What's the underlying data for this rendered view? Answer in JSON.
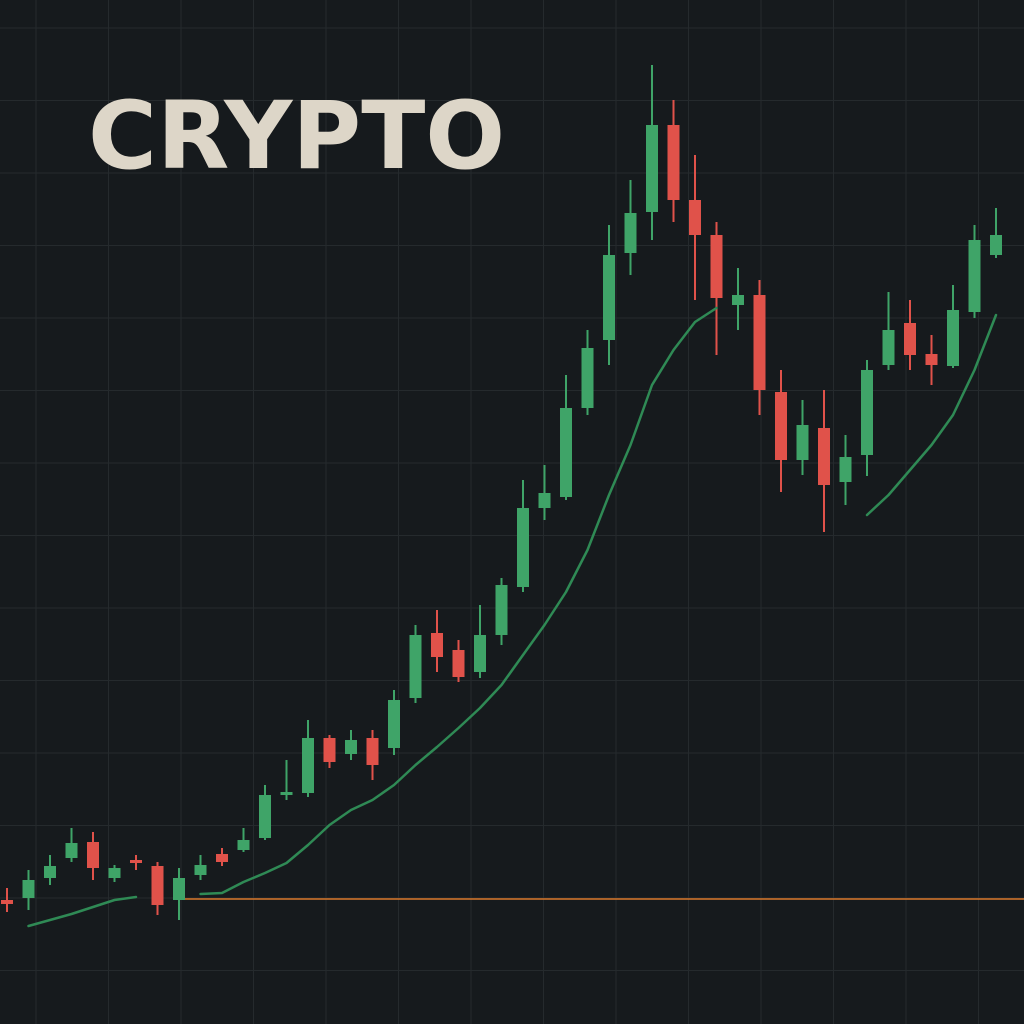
{
  "chart_data": {
    "type": "candlestick",
    "title": "CRYPTO",
    "ylim": [
      -2.4,
      100
    ],
    "grid": true,
    "up_color": "#3fa468",
    "down_color": "#e0524a",
    "open": [
      10.0,
      10.2,
      12.2,
      14.2,
      15.8,
      12.2,
      14.0,
      13.4,
      10.0,
      12.5,
      14.6,
      15.0,
      16.2,
      20.5,
      20.7,
      26.2,
      24.6,
      26.2,
      25.2,
      30.2,
      36.7,
      35.0,
      32.8,
      36.5,
      41.3,
      49.2,
      50.3,
      59.2,
      66.0,
      74.7,
      78.8,
      87.5,
      80.0,
      76.5,
      69.5,
      70.5,
      60.8,
      54.0,
      57.2,
      51.8,
      54.5,
      63.5,
      67.7,
      64.6,
      63.4,
      68.8,
      74.5
    ],
    "high": [
      11.2,
      13.0,
      14.5,
      17.2,
      16.8,
      13.5,
      14.5,
      13.8,
      13.2,
      14.5,
      15.2,
      17.2,
      21.5,
      24.0,
      28.0,
      26.5,
      27.0,
      27.0,
      31.0,
      37.5,
      39.0,
      36.0,
      39.5,
      42.2,
      52.0,
      53.5,
      62.5,
      67.0,
      77.5,
      82.0,
      93.5,
      90.0,
      84.5,
      77.8,
      73.2,
      72.0,
      63.0,
      60.0,
      61.0,
      56.5,
      64.0,
      70.8,
      70.0,
      66.5,
      71.5,
      77.5,
      79.2
    ],
    "low": [
      8.8,
      9.0,
      11.5,
      13.8,
      12.0,
      11.8,
      13.0,
      8.5,
      8.0,
      12.0,
      13.4,
      14.8,
      16.0,
      20.0,
      20.3,
      23.2,
      24.0,
      22.0,
      24.5,
      29.7,
      32.8,
      31.8,
      32.2,
      35.5,
      40.8,
      48.0,
      50.0,
      58.5,
      63.5,
      72.5,
      76.0,
      77.8,
      70.0,
      64.5,
      67.0,
      58.5,
      50.8,
      52.5,
      46.8,
      49.5,
      52.4,
      63.0,
      63.0,
      61.5,
      63.2,
      68.2,
      74.2
    ],
    "close": [
      9.6,
      12.0,
      13.4,
      15.7,
      13.2,
      13.2,
      13.7,
      9.5,
      12.2,
      13.5,
      13.8,
      16.0,
      20.5,
      20.8,
      26.2,
      23.8,
      26.0,
      23.5,
      30.0,
      36.5,
      34.3,
      32.3,
      36.5,
      41.5,
      49.2,
      50.7,
      59.2,
      65.2,
      74.5,
      78.7,
      87.5,
      80.0,
      76.5,
      70.2,
      70.5,
      61.0,
      54.0,
      57.5,
      51.5,
      54.3,
      63.0,
      67.0,
      64.5,
      63.5,
      69.0,
      76.0,
      76.5
    ],
    "ma": {
      "color": "#2f8a55",
      "values": [
        null,
        7.4,
        8.0,
        8.6,
        9.3,
        10.0,
        10.3,
        null,
        null,
        10.6,
        10.7,
        11.8,
        12.7,
        13.7,
        15.5,
        17.5,
        19.0,
        20.0,
        21.5,
        23.5,
        25.3,
        27.2,
        29.2,
        31.5,
        34.5,
        37.5,
        40.8,
        45.0,
        50.5,
        55.5,
        61.5,
        65.0,
        67.8,
        69.2,
        null,
        null,
        null,
        null,
        null,
        null,
        48.5,
        50.5,
        53.0,
        55.5,
        58.5,
        63.0,
        68.5
      ]
    },
    "hline": {
      "value": 10.1,
      "color": "#d9772b"
    }
  }
}
